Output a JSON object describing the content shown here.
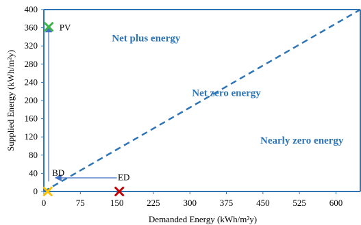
{
  "chart_data": {
    "type": "scatter",
    "xlabel": "Demanded Energy (kWh/m²y)",
    "ylabel": "Supplied Energy (kWh/m²y)",
    "xlim": [
      0,
      650
    ],
    "ylim": [
      0,
      400
    ],
    "x_ticks": [
      0,
      75,
      150,
      225,
      300,
      375,
      450,
      525,
      600
    ],
    "y_ticks": [
      0,
      40,
      80,
      120,
      160,
      200,
      240,
      280,
      320,
      360,
      400
    ],
    "grid": false,
    "boundary_line": {
      "style": "dashed",
      "color": "#2E75B6",
      "from": [
        0,
        0
      ],
      "to": [
        650,
        400
      ]
    },
    "regions": [
      {
        "label": "Net plus energy",
        "x": 210,
        "y": 330,
        "color": "#2E75B6"
      },
      {
        "label": "Net zero energy",
        "x": 375,
        "y": 210,
        "color": "#2E75B6"
      },
      {
        "label": "Nearly zero energy",
        "x": 530,
        "y": 105,
        "color": "#2E75B6"
      }
    ],
    "points": [
      {
        "name": "PV",
        "x": 10,
        "y": 362,
        "marker": "x",
        "color": "#3DB54A"
      },
      {
        "name": "",
        "x": 155,
        "y": 0,
        "marker": "x",
        "color": "#C00000"
      },
      {
        "name": "",
        "x": 8,
        "y": 0,
        "marker": "x",
        "color": "#FFC000"
      }
    ],
    "point_labels": [
      {
        "text": "PV",
        "x": 32,
        "y": 362
      },
      {
        "text": "BD",
        "x": 17,
        "y": 42
      },
      {
        "text": "ED",
        "x": 152,
        "y": 32
      }
    ],
    "arrows": [
      {
        "from": [
          150,
          30
        ],
        "to": [
          25,
          30
        ],
        "color": "#4472C4"
      },
      {
        "from": [
          10,
          22
        ],
        "to": [
          10,
          362
        ],
        "color": "#4472C4"
      }
    ]
  }
}
